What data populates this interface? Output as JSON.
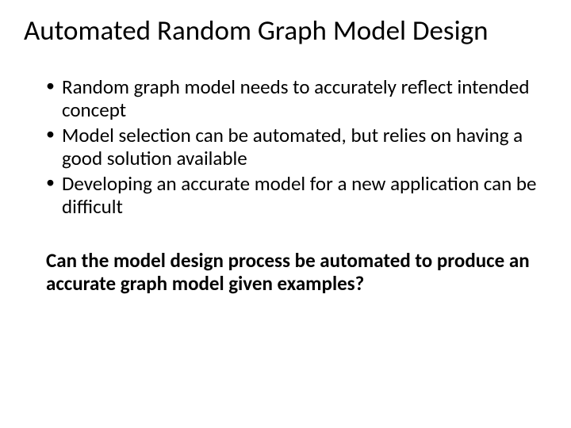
{
  "title": "Automated Random Graph Model Design",
  "bullets": [
    "Random graph model needs to accurately reflect intended concept",
    "Model selection can be automated, but relies on having a good solution available",
    "Developing an accurate model for a new application can be difficult"
  ],
  "question": "Can the model design process be automated to produce an accurate graph model given examples?",
  "style": {
    "background_color": "#ffffff",
    "text_color": "#000000",
    "title_fontsize": 35,
    "body_fontsize": 25,
    "font_family": "Calibri"
  }
}
